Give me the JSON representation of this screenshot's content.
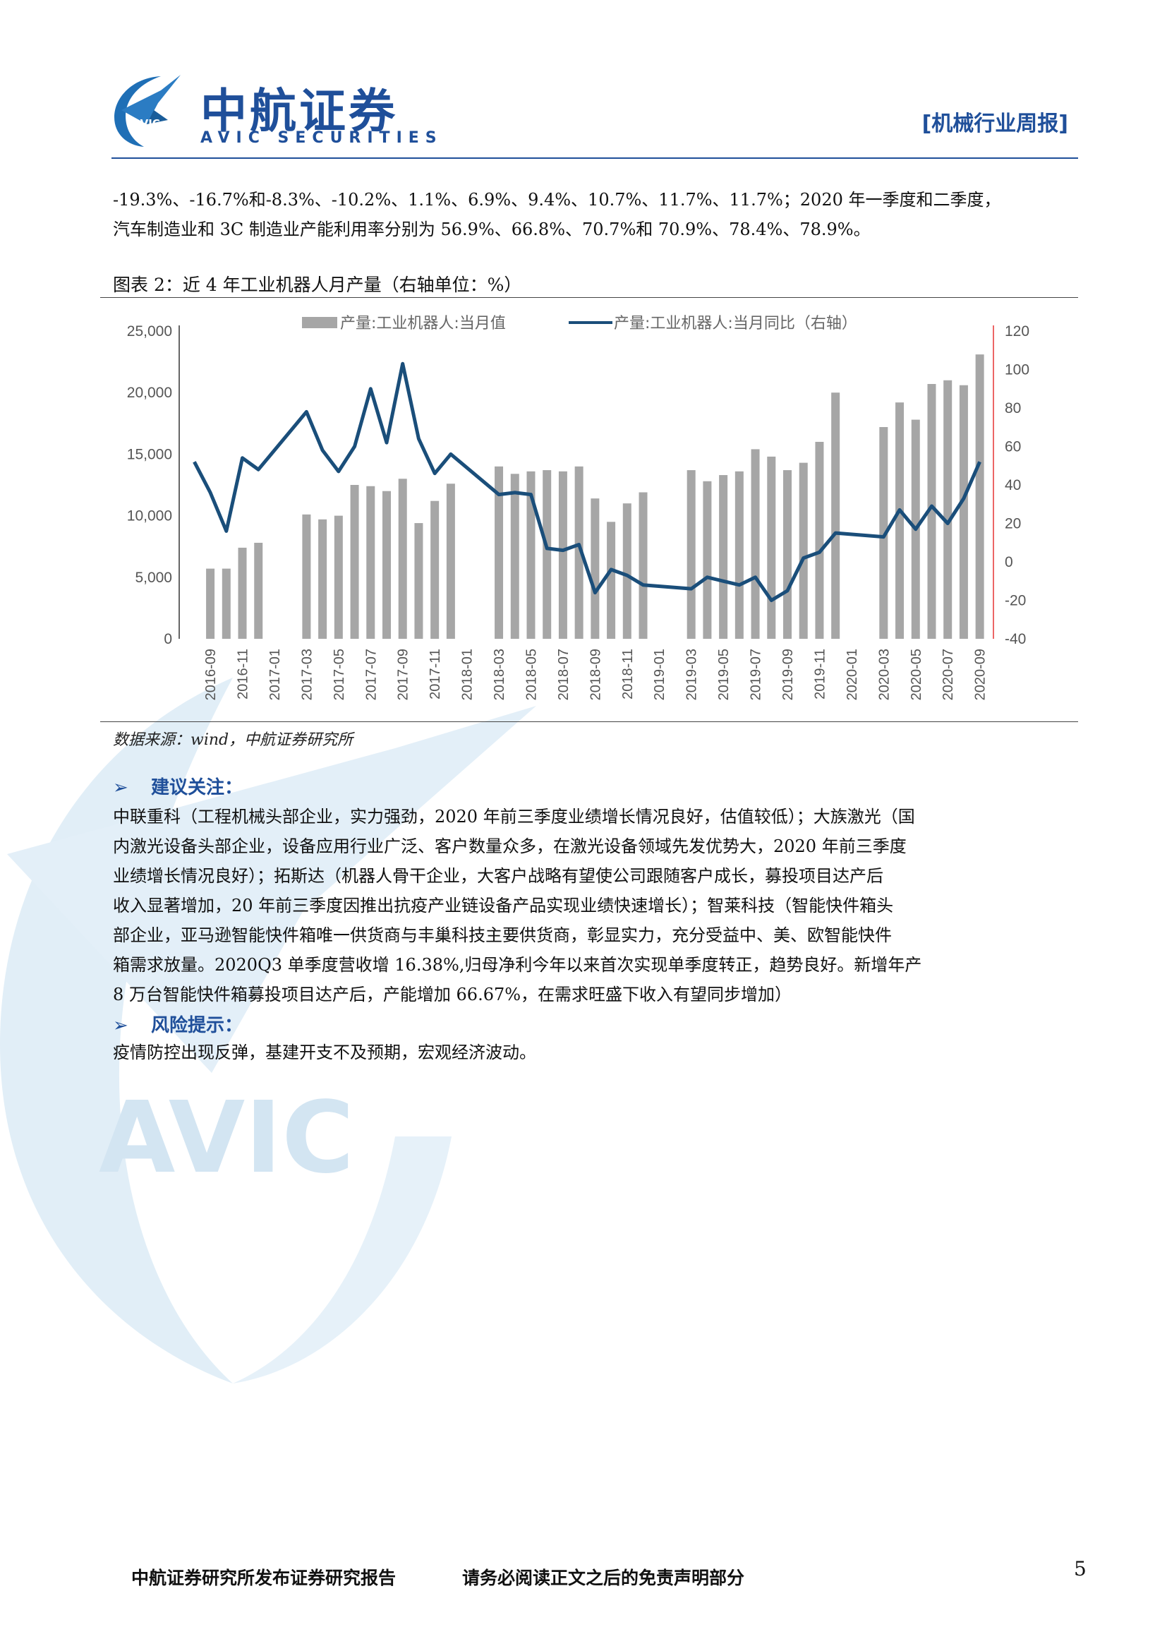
{
  "header": {
    "brand_cn": "中航证券",
    "brand_en": "AVIC SECURITIES",
    "logo_text": "AVIC",
    "report_tag": "[机械行业周报]"
  },
  "intro": {
    "lines": [
      "-19.3%、-16.7%和-8.3%、-10.2%、1.1%、6.9%、9.4%、10.7%、11.7%、11.7%；2020 年一季度和二季度，",
      "汽车制造业和 3C 制造业产能利用率分别为 56.9%、66.8%、70.7%和 70.9%、78.4%、78.9%。"
    ]
  },
  "figure": {
    "title": "图表 2：近 4 年工业机器人月产量（右轴单位：%）",
    "source": "数据来源：wind，中航证券研究所"
  },
  "chart_data": {
    "type": "bar+line",
    "title": "",
    "legend": [
      "产量:工业机器人:当月值",
      "产量:工业机器人:当月同比（右轴）"
    ],
    "legend_position": "top",
    "grid": false,
    "x_tick_labels": [
      "2016-09",
      "2016-11",
      "2017-01",
      "2017-03",
      "2017-05",
      "2017-07",
      "2017-09",
      "2017-11",
      "2018-01",
      "2018-03",
      "2018-05",
      "2018-07",
      "2018-09",
      "2018-11",
      "2019-01",
      "2019-03",
      "2019-05",
      "2019-07",
      "2019-09",
      "2019-11",
      "2020-01",
      "2020-03",
      "2020-05",
      "2020-07",
      "2020-09"
    ],
    "y_left": {
      "ticks": [
        "0",
        "5,000",
        "10,000",
        "15,000",
        "20,000",
        "25,000"
      ],
      "range": [
        0,
        25000
      ]
    },
    "y_right": {
      "ticks": [
        "-40",
        "-20",
        "0",
        "20",
        "40",
        "60",
        "80",
        "100",
        "120"
      ],
      "range": [
        -40,
        120
      ],
      "negative_color": "#e00000"
    },
    "series": [
      {
        "name": "产量:工业机器人:当月值",
        "kind": "bar",
        "color": "#a6a6a6",
        "points": [
          [
            "2016-09",
            5700
          ],
          [
            "2016-10",
            5700
          ],
          [
            "2016-11",
            7400
          ],
          [
            "2016-12",
            7800
          ],
          [
            "2017-03",
            10100
          ],
          [
            "2017-04",
            9700
          ],
          [
            "2017-05",
            10000
          ],
          [
            "2017-06",
            12500
          ],
          [
            "2017-07",
            12400
          ],
          [
            "2017-08",
            12000
          ],
          [
            "2017-09",
            13000
          ],
          [
            "2017-10",
            9400
          ],
          [
            "2017-11",
            11200
          ],
          [
            "2017-12",
            12600
          ],
          [
            "2018-03",
            14000
          ],
          [
            "2018-04",
            13400
          ],
          [
            "2018-05",
            13600
          ],
          [
            "2018-06",
            13700
          ],
          [
            "2018-07",
            13600
          ],
          [
            "2018-08",
            14000
          ],
          [
            "2018-09",
            11400
          ],
          [
            "2018-10",
            9500
          ],
          [
            "2018-11",
            11000
          ],
          [
            "2018-12",
            11900
          ],
          [
            "2019-03",
            13700
          ],
          [
            "2019-04",
            12800
          ],
          [
            "2019-05",
            13300
          ],
          [
            "2019-06",
            13600
          ],
          [
            "2019-07",
            15400
          ],
          [
            "2019-08",
            14800
          ],
          [
            "2019-09",
            13700
          ],
          [
            "2019-10",
            14300
          ],
          [
            "2019-11",
            16000
          ],
          [
            "2019-12",
            20000
          ],
          [
            "2020-03",
            17200
          ],
          [
            "2020-04",
            19200
          ],
          [
            "2020-05",
            17800
          ],
          [
            "2020-06",
            20700
          ],
          [
            "2020-07",
            21000
          ],
          [
            "2020-08",
            20600
          ],
          [
            "2020-09",
            23100
          ]
        ]
      },
      {
        "name": "产量:工业机器人:当月同比（右轴）",
        "kind": "line",
        "color": "#1a4e7a",
        "points": [
          [
            "2016-08",
            52
          ],
          [
            "2016-09",
            36
          ],
          [
            "2016-10",
            16
          ],
          [
            "2016-11",
            54
          ],
          [
            "2016-12",
            48
          ],
          [
            "2017-03",
            78
          ],
          [
            "2017-04",
            58
          ],
          [
            "2017-05",
            47
          ],
          [
            "2017-06",
            60
          ],
          [
            "2017-07",
            90
          ],
          [
            "2017-08",
            62
          ],
          [
            "2017-09",
            103
          ],
          [
            "2017-10",
            64
          ],
          [
            "2017-11",
            46
          ],
          [
            "2017-12",
            56
          ],
          [
            "2018-03",
            35
          ],
          [
            "2018-04",
            36
          ],
          [
            "2018-05",
            35
          ],
          [
            "2018-06",
            7
          ],
          [
            "2018-07",
            6
          ],
          [
            "2018-08",
            9
          ],
          [
            "2018-09",
            -16
          ],
          [
            "2018-10",
            -4
          ],
          [
            "2018-11",
            -7
          ],
          [
            "2018-12",
            -12
          ],
          [
            "2019-03",
            -14
          ],
          [
            "2019-04",
            -8
          ],
          [
            "2019-05",
            -10
          ],
          [
            "2019-06",
            -12
          ],
          [
            "2019-07",
            -8
          ],
          [
            "2019-08",
            -20
          ],
          [
            "2019-09",
            -15
          ],
          [
            "2019-10",
            2
          ],
          [
            "2019-11",
            5
          ],
          [
            "2019-12",
            15
          ],
          [
            "2020-03",
            13
          ],
          [
            "2020-04",
            27
          ],
          [
            "2020-05",
            17
          ],
          [
            "2020-06",
            29
          ],
          [
            "2020-07",
            20
          ],
          [
            "2020-08",
            33
          ],
          [
            "2020-09",
            52
          ]
        ]
      }
    ]
  },
  "recommend": {
    "head": "建议关注：",
    "arrow": "➢",
    "lines": [
      "中联重科（工程机械头部企业，实力强劲，2020 年前三季度业绩增长情况良好，估值较低）；大族激光（国",
      "内激光设备头部企业，设备应用行业广泛、客户数量众多，在激光设备领域先发优势大，2020 年前三季度",
      "业绩增长情况良好）；拓斯达（机器人骨干企业，大客户战略有望使公司跟随客户成长，募投项目达产后",
      "收入显著增加，20 年前三季度因推出抗疫产业链设备产品实现业绩快速增长）；智莱科技（智能快件箱头",
      "部企业，亚马逊智能快件箱唯一供货商与丰巢科技主要供货商，彰显实力，充分受益中、美、欧智能快件",
      "箱需求放量。2020Q3 单季度营收增 16.38%,归母净利今年以来首次实现单季度转正，趋势良好。新增年产",
      "8 万台智能快件箱募投项目达产后，产能增加 66.67%，在需求旺盛下收入有望同步增加）"
    ]
  },
  "risk": {
    "head": "风险提示：",
    "arrow": "➢",
    "text": "疫情防控出现反弹，基建开支不及预期，宏观经济波动。"
  },
  "footer": {
    "left": "中航证券研究所发布证券研究报告",
    "mid": "请务必阅读正文之后的免责声明部分",
    "page": "5"
  },
  "watermark_text": "AVIC"
}
